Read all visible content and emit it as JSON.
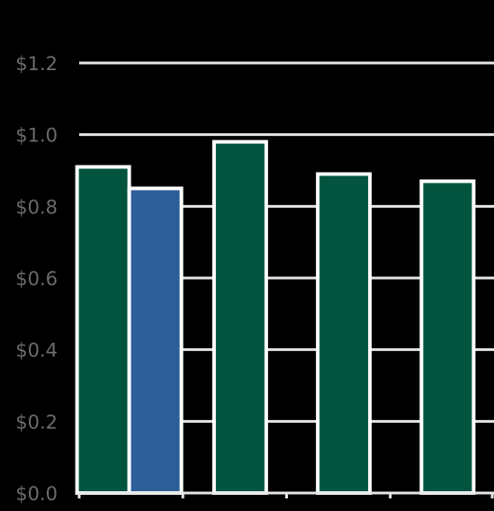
{
  "chart_data": {
    "type": "bar",
    "title": "",
    "xlabel": "",
    "ylabel": "",
    "ylim": [
      0,
      1.2
    ],
    "yticks": [
      0.0,
      0.2,
      0.4,
      0.6,
      0.8,
      1.0,
      1.2
    ],
    "ytick_labels": [
      "$0.0",
      "$0.2",
      "$0.4",
      "$0.6",
      "$0.8",
      "$1.0",
      "$1.2"
    ],
    "grid": true,
    "legend": "none",
    "groups": [
      {
        "bars": [
          {
            "value": 0.91,
            "color": "#03543f"
          },
          {
            "value": 0.85,
            "color": "#2e5e97"
          }
        ]
      },
      {
        "bars": [
          {
            "value": 0.98,
            "color": "#03543f"
          }
        ]
      },
      {
        "bars": [
          {
            "value": 0.89,
            "color": "#03543f"
          }
        ]
      },
      {
        "bars": [
          {
            "value": 0.87,
            "color": "#03543f"
          }
        ]
      }
    ],
    "colors": {
      "background": "#000000",
      "grid": "#e6e6e6",
      "bar_outline": "#ffffff",
      "tick_text": "#6b6b6b"
    }
  }
}
